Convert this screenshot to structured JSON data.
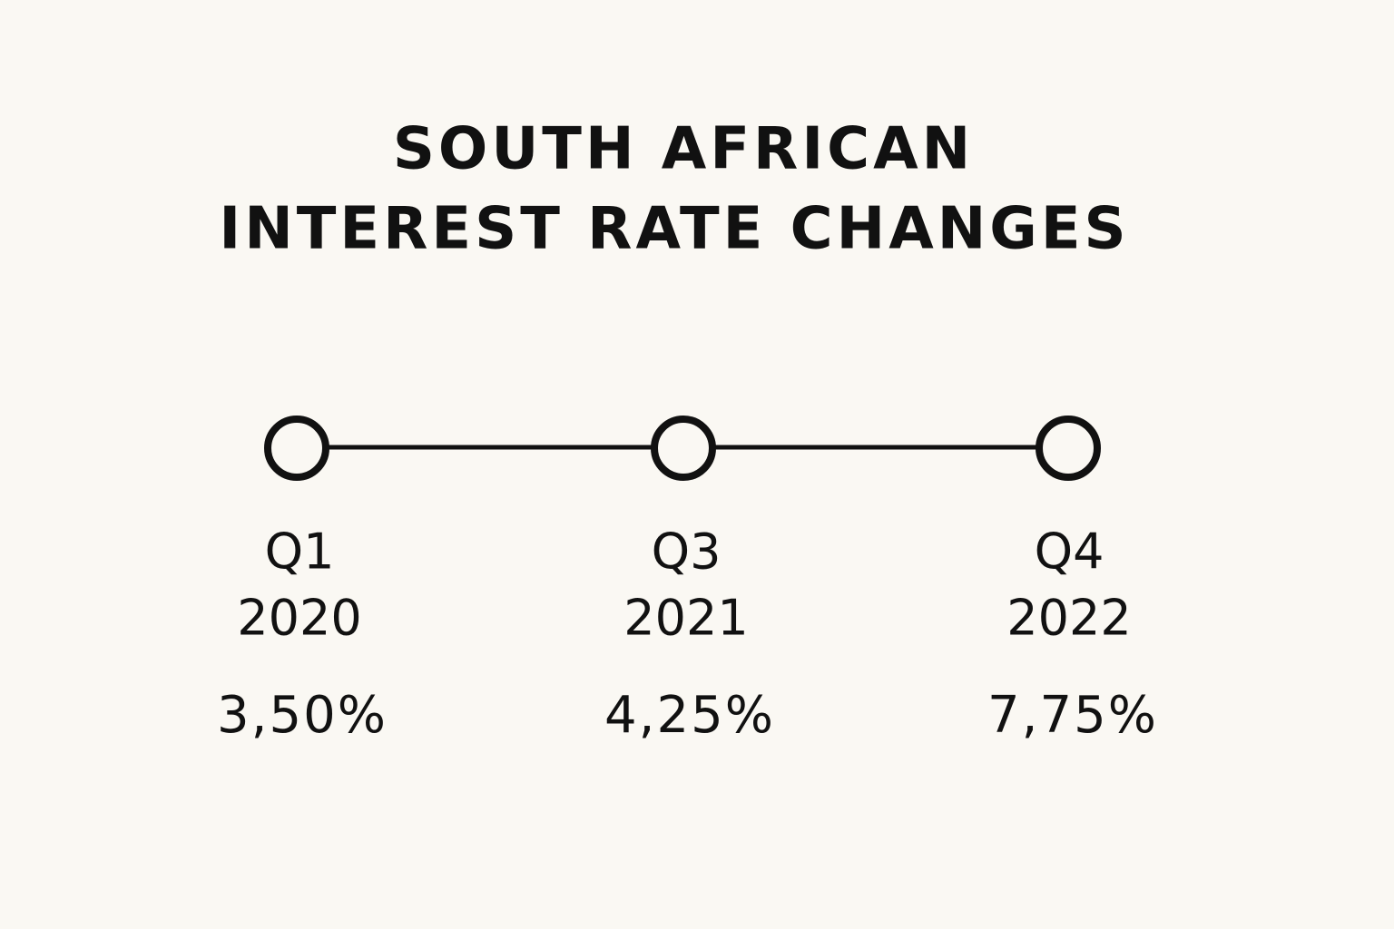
{
  "title": [
    "SOUTH AFRICAN",
    "INTEREST RATE CHANGES"
  ],
  "nodes": [
    {
      "quarter": "Q1",
      "year": "2020",
      "rate": "3,50%"
    },
    {
      "quarter": "Q3",
      "year": "2021",
      "rate": "4,25%"
    },
    {
      "quarter": "Q4",
      "year": "2022",
      "rate": "7,75%"
    }
  ]
}
